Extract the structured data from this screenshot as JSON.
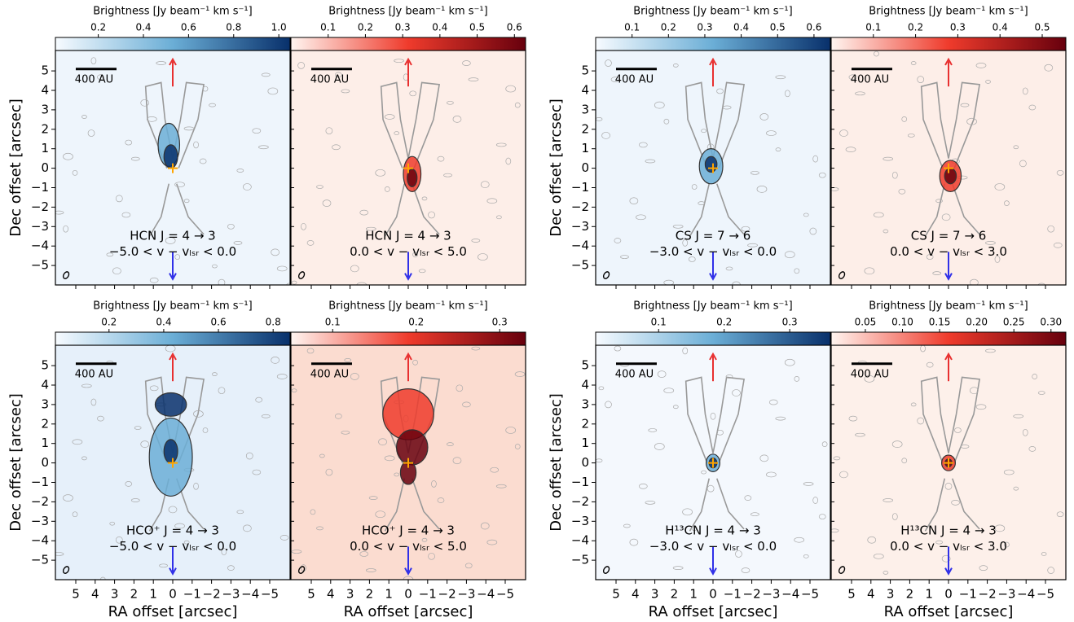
{
  "chart_data": [
    {
      "type": "image",
      "title": "HCN J = 4 → 3",
      "subtitle": "−5.0 < v − vₗₛᵣ < 0.0",
      "scalebar": "400 AU",
      "colorbar_label": "Brightness [Jy beam⁻¹ km s⁻¹]",
      "cmap": [
        "#f7fbff",
        "#6baed6",
        "#08306b"
      ],
      "background": "#eef5fc",
      "clim": [
        0.01,
        1.05
      ],
      "cticks": [
        0.2,
        0.4,
        0.6,
        0.8,
        {
          "value": 1.0,
          "label": "1.0"
        }
      ],
      "xlim": [
        6.05,
        -6.05
      ],
      "ylim": [
        -6,
        6.05
      ],
      "ylabel": "Dec offset [arcsec]",
      "yticks": [
        5,
        4,
        3,
        2,
        1,
        0,
        {
          "value": -1,
          "label": "−1"
        },
        {
          "value": -2,
          "label": "−2"
        },
        {
          "value": -3,
          "label": "−3"
        },
        {
          "value": -4,
          "label": "−4"
        },
        {
          "value": -5,
          "label": "−5"
        }
      ]
    },
    {
      "type": "image",
      "title": "HCN J = 4 → 3",
      "subtitle": "0.0 < v − vₗₛᵣ < 5.0",
      "scalebar": "400 AU",
      "colorbar_label": "Brightness [Jy beam⁻¹ km s⁻¹]",
      "cmap": [
        "#fff5f0",
        "#ef3b2c",
        "#67000d"
      ],
      "background": "#fdeee8",
      "clim": [
        0,
        0.63
      ],
      "cticks": [
        0.1,
        0.2,
        0.3,
        0.4,
        0.5,
        0.6
      ],
      "xlim": [
        6.05,
        -6.05
      ],
      "ylim": [
        -6,
        6.05
      ]
    },
    {
      "type": "image",
      "title": "CS J = 7 → 6",
      "subtitle": "−3.0 < v − vₗₛᵣ < 0.0",
      "scalebar": "400 AU",
      "colorbar_label": "Brightness [Jy beam⁻¹ km s⁻¹]",
      "cmap": [
        "#f7fbff",
        "#6baed6",
        "#08306b"
      ],
      "background": "#eef5fc",
      "clim": [
        0,
        0.645
      ],
      "cticks": [
        0.1,
        0.2,
        0.3,
        0.4,
        0.5,
        0.6
      ],
      "xlim": [
        6.05,
        -6.05
      ],
      "ylim": [
        -6,
        6.05
      ],
      "ylabel": "Dec offset [arcsec]",
      "yticks": [
        5,
        4,
        3,
        2,
        1,
        0,
        {
          "value": -1,
          "label": "−1"
        },
        {
          "value": -2,
          "label": "−2"
        },
        {
          "value": -3,
          "label": "−3"
        },
        {
          "value": -4,
          "label": "−4"
        },
        {
          "value": -5,
          "label": "−5"
        }
      ]
    },
    {
      "type": "image",
      "title": "CS J = 7 → 6",
      "subtitle": "0.0 < v − vₗₛᵣ < 3.0",
      "scalebar": "400 AU",
      "colorbar_label": "Brightness [Jy beam⁻¹ km s⁻¹]",
      "cmap": [
        "#fff5f0",
        "#ef3b2c",
        "#67000d"
      ],
      "background": "#fdeee8",
      "clim": [
        0,
        0.556
      ],
      "cticks": [
        0.1,
        0.2,
        0.3,
        0.4,
        0.5
      ],
      "xlim": [
        6.05,
        -6.05
      ],
      "ylim": [
        -6,
        6.05
      ]
    },
    {
      "type": "image",
      "title": "HCO⁺ J = 4 → 3",
      "subtitle": "−5.0 < v − vₗₛᵣ < 0.0",
      "scalebar": "400 AU",
      "colorbar_label": "Brightness [Jy beam⁻¹ km s⁻¹]",
      "cmap": [
        "#f7fbff",
        "#6baed6",
        "#08306b"
      ],
      "background": "#e6f0fa",
      "clim": [
        0.004,
        0.862
      ],
      "cticks": [
        0.2,
        0.4,
        0.6,
        0.8
      ],
      "xlim": [
        6.05,
        -6.05
      ],
      "ylim": [
        -6,
        6.05
      ],
      "ylabel": "Dec offset [arcsec]",
      "xlabel": "RA offset [arcsec]",
      "yticks": [
        5,
        4,
        3,
        2,
        1,
        0,
        {
          "value": -1,
          "label": "−1"
        },
        {
          "value": -2,
          "label": "−2"
        },
        {
          "value": -3,
          "label": "−3"
        },
        {
          "value": -4,
          "label": "−4"
        },
        {
          "value": -5,
          "label": "−5"
        }
      ],
      "xticks": [
        5,
        4,
        3,
        2,
        1,
        0,
        {
          "value": -1,
          "label": "−1"
        },
        {
          "value": -2,
          "label": "−2"
        },
        {
          "value": -3,
          "label": "−3"
        },
        {
          "value": -4,
          "label": "−4"
        },
        {
          "value": -5,
          "label": "−5"
        }
      ]
    },
    {
      "type": "image",
      "title": "HCO⁺ J = 4 → 3",
      "subtitle": "0.0 < v − vₗₛᵣ < 5.0",
      "scalebar": "400 AU",
      "colorbar_label": "Brightness [Jy beam⁻¹ km s⁻¹]",
      "cmap": [
        "#fff5f0",
        "#ef3b2c",
        "#67000d"
      ],
      "background": "#fbdcd0",
      "clim": [
        0.05,
        0.331
      ],
      "cticks": [
        0.1,
        0.2,
        0.3
      ],
      "xlim": [
        6.05,
        -6.05
      ],
      "ylim": [
        -6,
        6.05
      ],
      "xlabel": "RA offset [arcsec]",
      "xticks": [
        5,
        4,
        3,
        2,
        1,
        0,
        {
          "value": -1,
          "label": "−1"
        },
        {
          "value": -2,
          "label": "−2"
        },
        {
          "value": -3,
          "label": "−3"
        },
        {
          "value": -4,
          "label": "−4"
        },
        {
          "value": -5,
          "label": "−5"
        }
      ]
    },
    {
      "type": "image",
      "title": "H¹³CN J = 4 → 3",
      "subtitle": "−3.0 < v − vₗₛᵣ < 0.0",
      "scalebar": "400 AU",
      "colorbar_label": "Brightness [Jy beam⁻¹ km s⁻¹]",
      "cmap": [
        "#f7fbff",
        "#6baed6",
        "#08306b"
      ],
      "background": "#f4f8fd",
      "clim": [
        0.004,
        0.362
      ],
      "cticks": [
        0.1,
        0.2,
        0.3
      ],
      "xlim": [
        6.05,
        -6.05
      ],
      "ylim": [
        -6,
        6.05
      ],
      "ylabel": "Dec offset [arcsec]",
      "xlabel": "RA offset [arcsec]",
      "yticks": [
        5,
        4,
        3,
        2,
        1,
        0,
        {
          "value": -1,
          "label": "−1"
        },
        {
          "value": -2,
          "label": "−2"
        },
        {
          "value": -3,
          "label": "−3"
        },
        {
          "value": -4,
          "label": "−4"
        },
        {
          "value": -5,
          "label": "−5"
        }
      ],
      "xticks": [
        5,
        4,
        3,
        2,
        1,
        0,
        {
          "value": -1,
          "label": "−1"
        },
        {
          "value": -2,
          "label": "−2"
        },
        {
          "value": -3,
          "label": "−3"
        },
        {
          "value": -4,
          "label": "−4"
        },
        {
          "value": -5,
          "label": "−5"
        }
      ]
    },
    {
      "type": "image",
      "title": "H¹³CN J = 4 → 3",
      "subtitle": "0.0 < v − vₗₛᵣ < 3.0",
      "scalebar": "400 AU",
      "colorbar_label": "Brightness [Jy beam⁻¹ km s⁻¹]",
      "cmap": [
        "#fff5f0",
        "#ef3b2c",
        "#67000d"
      ],
      "background": "#fdf0ea",
      "clim": [
        0.004,
        0.32
      ],
      "cticks": [
        0.05,
        {
          "value": 0.1,
          "label": "0.10"
        },
        0.15,
        {
          "value": 0.2,
          "label": "0.20"
        },
        0.25,
        {
          "value": 0.3,
          "label": "0.30"
        }
      ],
      "xlim": [
        6.05,
        -6.05
      ],
      "ylim": [
        -6,
        6.05
      ],
      "xlabel": "RA offset [arcsec]",
      "xticks": [
        5,
        4,
        3,
        2,
        1,
        0,
        {
          "value": -1,
          "label": "−1"
        },
        {
          "value": -2,
          "label": "−2"
        },
        {
          "value": -3,
          "label": "−3"
        },
        {
          "value": -4,
          "label": "−4"
        },
        {
          "value": -5,
          "label": "−5"
        }
      ]
    }
  ]
}
